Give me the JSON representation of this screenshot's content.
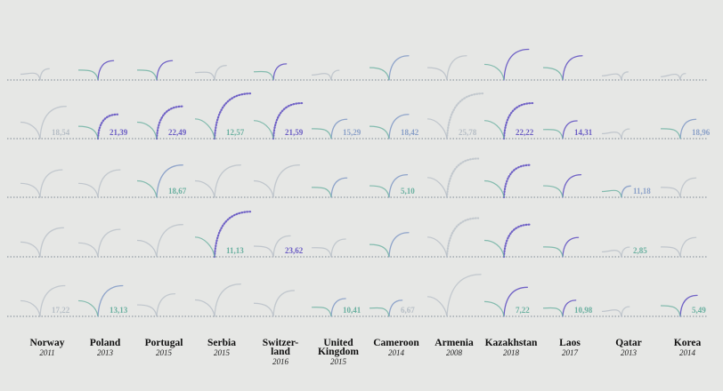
{
  "chart_data": {
    "type": "other",
    "colors": {
      "low": "#6ab0a0",
      "mid": "#8aa0c8",
      "high": "#6a5cc4",
      "faint": "#b5bdc5",
      "rule": "#7f8894"
    },
    "columns": [
      {
        "country": "Norway",
        "year": "2011"
      },
      {
        "country": "Poland",
        "year": "2013"
      },
      {
        "country": "Portugal",
        "year": "2015"
      },
      {
        "country": "Serbia",
        "year": "2015"
      },
      {
        "country": "Switzer-\nland",
        "year": "2016"
      },
      {
        "country": "United\nKingdom",
        "year": "2015"
      },
      {
        "country": "Cameroon",
        "year": "2014"
      },
      {
        "country": "Armenia",
        "year": "2008"
      },
      {
        "country": "Kazakhstan",
        "year": "2018"
      },
      {
        "country": "Laos",
        "year": "2017"
      },
      {
        "country": "Qatar",
        "year": "2013"
      },
      {
        "country": "Korea",
        "year": "2014"
      }
    ],
    "value_labels": [
      {
        "row": 1,
        "col": 0,
        "text": "18,54",
        "color": "faint"
      },
      {
        "row": 1,
        "col": 1,
        "text": "21,39",
        "color": "high"
      },
      {
        "row": 1,
        "col": 2,
        "text": "22,49",
        "color": "high"
      },
      {
        "row": 1,
        "col": 3,
        "text": "12,57",
        "color": "low"
      },
      {
        "row": 1,
        "col": 4,
        "text": "21,59",
        "color": "high"
      },
      {
        "row": 1,
        "col": 5,
        "text": "15,29",
        "color": "mid"
      },
      {
        "row": 1,
        "col": 6,
        "text": "18,42",
        "color": "mid"
      },
      {
        "row": 1,
        "col": 7,
        "text": "25,78",
        "color": "faint"
      },
      {
        "row": 1,
        "col": 8,
        "text": "22,22",
        "color": "high"
      },
      {
        "row": 1,
        "col": 9,
        "text": "14,31",
        "color": "high"
      },
      {
        "row": 1,
        "col": 11,
        "text": "18,96",
        "color": "mid"
      },
      {
        "row": 2,
        "col": 2,
        "text": "18,67",
        "color": "low"
      },
      {
        "row": 2,
        "col": 6,
        "text": "5,10",
        "color": "low"
      },
      {
        "row": 2,
        "col": 10,
        "text": "11,18",
        "color": "mid"
      },
      {
        "row": 3,
        "col": 3,
        "text": "11,13",
        "color": "low"
      },
      {
        "row": 3,
        "col": 4,
        "text": "23,62",
        "color": "high"
      },
      {
        "row": 3,
        "col": 10,
        "text": "2,85",
        "color": "low"
      },
      {
        "row": 4,
        "col": 0,
        "text": "17,22",
        "color": "faint"
      },
      {
        "row": 4,
        "col": 1,
        "text": "13,13",
        "color": "low"
      },
      {
        "row": 4,
        "col": 5,
        "text": "10,41",
        "color": "low"
      },
      {
        "row": 4,
        "col": 6,
        "text": "6,67",
        "color": "faint"
      },
      {
        "row": 4,
        "col": 8,
        "text": "7,22",
        "color": "low"
      },
      {
        "row": 4,
        "col": 9,
        "text": "10,98",
        "color": "low"
      },
      {
        "row": 4,
        "col": 11,
        "text": "5,49",
        "color": "low"
      }
    ],
    "arcs": [
      {
        "row": 0,
        "col": 0,
        "size": 0.35,
        "shade": "faint",
        "dotted": false
      },
      {
        "row": 0,
        "col": 1,
        "size": 0.6,
        "shade": "high",
        "dotted": false
      },
      {
        "row": 0,
        "col": 2,
        "size": 0.6,
        "shade": "high",
        "dotted": false
      },
      {
        "row": 0,
        "col": 3,
        "size": 0.45,
        "shade": "faint",
        "dotted": false
      },
      {
        "row": 0,
        "col": 4,
        "size": 0.5,
        "shade": "high",
        "dotted": false
      },
      {
        "row": 0,
        "col": 5,
        "size": 0.3,
        "shade": "faint",
        "dotted": false
      },
      {
        "row": 0,
        "col": 6,
        "size": 0.75,
        "shade": "mid",
        "dotted": false
      },
      {
        "row": 0,
        "col": 7,
        "size": 0.75,
        "shade": "faint",
        "dotted": false
      },
      {
        "row": 0,
        "col": 8,
        "size": 0.95,
        "shade": "high",
        "dotted": false
      },
      {
        "row": 0,
        "col": 9,
        "size": 0.75,
        "shade": "high",
        "dotted": false
      },
      {
        "row": 0,
        "col": 10,
        "size": 0.25,
        "shade": "faint",
        "dotted": false
      },
      {
        "row": 0,
        "col": 11,
        "size": 0.2,
        "shade": "faint",
        "dotted": false
      },
      {
        "row": 1,
        "col": 0,
        "size": 1.0,
        "shade": "faint",
        "dotted": false
      },
      {
        "row": 1,
        "col": 1,
        "size": 0.75,
        "shade": "high",
        "dotted": true
      },
      {
        "row": 1,
        "col": 2,
        "size": 1.0,
        "shade": "high",
        "dotted": true
      },
      {
        "row": 1,
        "col": 3,
        "size": 1.4,
        "shade": "high",
        "dotted": true
      },
      {
        "row": 1,
        "col": 4,
        "size": 1.1,
        "shade": "high",
        "dotted": true
      },
      {
        "row": 1,
        "col": 5,
        "size": 0.6,
        "shade": "mid",
        "dotted": false
      },
      {
        "row": 1,
        "col": 6,
        "size": 0.75,
        "shade": "mid",
        "dotted": false
      },
      {
        "row": 1,
        "col": 7,
        "size": 1.4,
        "shade": "faint",
        "dotted": true
      },
      {
        "row": 1,
        "col": 8,
        "size": 1.1,
        "shade": "high",
        "dotted": true
      },
      {
        "row": 1,
        "col": 9,
        "size": 0.55,
        "shade": "high",
        "dotted": false
      },
      {
        "row": 1,
        "col": 10,
        "size": 0.3,
        "shade": "faint",
        "dotted": false
      },
      {
        "row": 1,
        "col": 11,
        "size": 0.6,
        "shade": "mid",
        "dotted": false
      },
      {
        "row": 2,
        "col": 0,
        "size": 0.85,
        "shade": "faint",
        "dotted": false
      },
      {
        "row": 2,
        "col": 1,
        "size": 0.85,
        "shade": "faint",
        "dotted": false
      },
      {
        "row": 2,
        "col": 2,
        "size": 1.0,
        "shade": "mid",
        "dotted": false
      },
      {
        "row": 2,
        "col": 3,
        "size": 1.0,
        "shade": "faint",
        "dotted": false
      },
      {
        "row": 2,
        "col": 4,
        "size": 1.0,
        "shade": "faint",
        "dotted": false
      },
      {
        "row": 2,
        "col": 5,
        "size": 0.6,
        "shade": "mid",
        "dotted": false
      },
      {
        "row": 2,
        "col": 6,
        "size": 0.7,
        "shade": "mid",
        "dotted": false
      },
      {
        "row": 2,
        "col": 7,
        "size": 1.2,
        "shade": "faint",
        "dotted": true
      },
      {
        "row": 2,
        "col": 8,
        "size": 1.0,
        "shade": "high",
        "dotted": true
      },
      {
        "row": 2,
        "col": 9,
        "size": 0.7,
        "shade": "high",
        "dotted": false
      },
      {
        "row": 2,
        "col": 10,
        "size": 0.35,
        "shade": "mid",
        "dotted": false
      },
      {
        "row": 2,
        "col": 11,
        "size": 0.6,
        "shade": "faint",
        "dotted": false
      },
      {
        "row": 3,
        "col": 0,
        "size": 0.9,
        "shade": "faint",
        "dotted": false
      },
      {
        "row": 3,
        "col": 1,
        "size": 0.85,
        "shade": "faint",
        "dotted": false
      },
      {
        "row": 3,
        "col": 2,
        "size": 1.0,
        "shade": "faint",
        "dotted": false
      },
      {
        "row": 3,
        "col": 3,
        "size": 1.4,
        "shade": "high",
        "dotted": true
      },
      {
        "row": 3,
        "col": 4,
        "size": 0.65,
        "shade": "faint",
        "dotted": false
      },
      {
        "row": 3,
        "col": 5,
        "size": 0.55,
        "shade": "faint",
        "dotted": false
      },
      {
        "row": 3,
        "col": 6,
        "size": 0.75,
        "shade": "mid",
        "dotted": false
      },
      {
        "row": 3,
        "col": 7,
        "size": 1.2,
        "shade": "faint",
        "dotted": true
      },
      {
        "row": 3,
        "col": 8,
        "size": 1.0,
        "shade": "high",
        "dotted": true
      },
      {
        "row": 3,
        "col": 9,
        "size": 0.6,
        "shade": "high",
        "dotted": false
      },
      {
        "row": 3,
        "col": 10,
        "size": 0.3,
        "shade": "faint",
        "dotted": false
      },
      {
        "row": 3,
        "col": 11,
        "size": 0.6,
        "shade": "faint",
        "dotted": false
      },
      {
        "row": 4,
        "col": 0,
        "size": 0.95,
        "shade": "faint",
        "dotted": false
      },
      {
        "row": 4,
        "col": 1,
        "size": 0.95,
        "shade": "mid",
        "dotted": false
      },
      {
        "row": 4,
        "col": 2,
        "size": 0.7,
        "shade": "faint",
        "dotted": false
      },
      {
        "row": 4,
        "col": 3,
        "size": 1.0,
        "shade": "faint",
        "dotted": false
      },
      {
        "row": 4,
        "col": 4,
        "size": 0.8,
        "shade": "faint",
        "dotted": false
      },
      {
        "row": 4,
        "col": 5,
        "size": 0.55,
        "shade": "mid",
        "dotted": false
      },
      {
        "row": 4,
        "col": 6,
        "size": 0.5,
        "shade": "mid",
        "dotted": false
      },
      {
        "row": 4,
        "col": 7,
        "size": 1.3,
        "shade": "faint",
        "dotted": false
      },
      {
        "row": 4,
        "col": 8,
        "size": 0.9,
        "shade": "high",
        "dotted": false
      },
      {
        "row": 4,
        "col": 9,
        "size": 0.5,
        "shade": "high",
        "dotted": false
      },
      {
        "row": 4,
        "col": 10,
        "size": 0.3,
        "shade": "faint",
        "dotted": false
      },
      {
        "row": 4,
        "col": 11,
        "size": 0.65,
        "shade": "high",
        "dotted": false
      }
    ]
  }
}
